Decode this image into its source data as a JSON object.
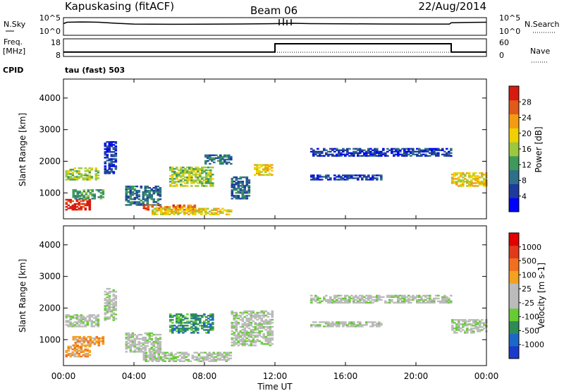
{
  "header": {
    "station": "Kapuskasing (fitACF)",
    "beam": "Beam 06",
    "date": "22/Aug/2014"
  },
  "noise_panel": {
    "left_label": "N.Sky",
    "left_ticks": [
      "10^5",
      "10^0"
    ],
    "right_ticks": [
      "10^5",
      "10^0"
    ],
    "right_label": "N.Search"
  },
  "freq_panel": {
    "left_label_1": "Freq.",
    "left_label_2": "[MHz]",
    "left_ticks": [
      "18",
      "8"
    ],
    "right_ticks": [
      "60",
      "0"
    ],
    "right_label": "Nave"
  },
  "cpid": {
    "label": "CPID",
    "mode": "tau (fast) 503"
  },
  "x_axis": {
    "label": "Time UT",
    "ticks": [
      "00:00",
      "04:00",
      "08:00",
      "12:00",
      "16:00",
      "20:00",
      "00:00"
    ]
  },
  "colors": {
    "power_scale": [
      "#0000ff",
      "#1e3a9c",
      "#2e6f8a",
      "#3e9a5a",
      "#9cc83e",
      "#f0d000",
      "#f39c12",
      "#e25a1a",
      "#d81b10"
    ],
    "velocity_scale": [
      "#1a3acb",
      "#1b68c8",
      "#2e8b57",
      "#66cc33",
      "#bbbbbb",
      "#bbbbbb",
      "#f4a020",
      "#f07020",
      "#e03a1a",
      "#e00000"
    ]
  },
  "chart_data": [
    {
      "type": "line",
      "panel": "noise",
      "x_unit": "hours UT",
      "y_scale": "log",
      "ylim": [
        1,
        100000
      ],
      "series": [
        {
          "x": [
            0,
            0.2,
            1,
            2,
            3,
            4,
            6,
            8,
            10,
            12,
            13,
            14,
            16,
            18,
            20,
            21.9,
            22,
            23,
            24
          ],
          "y": [
            2000,
            5000,
            6000,
            5000,
            2500,
            1500,
            1300,
            1400,
            1600,
            2000,
            2500,
            2000,
            1800,
            1600,
            1500,
            1500,
            3500,
            4500,
            5000
          ]
        }
      ]
    },
    {
      "type": "line",
      "panel": "frequency",
      "x_unit": "hours UT",
      "ylim": [
        8,
        18
      ],
      "series": [
        {
          "x": [
            0,
            12,
            12,
            22,
            22,
            24
          ],
          "y": [
            10.5,
            10.5,
            15.2,
            15.2,
            10.5,
            10.5
          ]
        }
      ]
    },
    {
      "type": "heatmap",
      "panel": "power",
      "x_range_hours": [
        0,
        24
      ],
      "ylabel": "Slant Range [km]",
      "ylim": [
        180,
        4600
      ],
      "yticks": [
        1000,
        2000,
        3000,
        4000
      ],
      "colorbar": {
        "label": "Power [dB]",
        "ticks": [
          4,
          8,
          12,
          16,
          20,
          24,
          28
        ]
      },
      "regions": [
        {
          "t": [
            0.1,
            1.5
          ],
          "r": [
            450,
            780
          ],
          "level": 8
        },
        {
          "t": [
            0.1,
            2.0
          ],
          "r": [
            1400,
            1800
          ],
          "level": 4
        },
        {
          "t": [
            0.5,
            2.2
          ],
          "r": [
            800,
            1100
          ],
          "level": 3
        },
        {
          "t": [
            2.3,
            3.0
          ],
          "r": [
            1600,
            2600
          ],
          "level": 1
        },
        {
          "t": [
            3.5,
            5.5
          ],
          "r": [
            600,
            1200
          ],
          "level": 2
        },
        {
          "t": [
            4.5,
            7.5
          ],
          "r": [
            450,
            600
          ],
          "level": 7
        },
        {
          "t": [
            5.0,
            9.5
          ],
          "r": [
            300,
            500
          ],
          "level": 5
        },
        {
          "t": [
            6.0,
            8.5
          ],
          "r": [
            1200,
            1800
          ],
          "level": 4
        },
        {
          "t": [
            8.0,
            9.5
          ],
          "r": [
            1900,
            2200
          ],
          "level": 2
        },
        {
          "t": [
            9.5,
            10.5
          ],
          "r": [
            800,
            1500
          ],
          "level": 2
        },
        {
          "t": [
            10.8,
            11.8
          ],
          "r": [
            1550,
            1900
          ],
          "level": 5
        },
        {
          "t": [
            14.0,
            22.0
          ],
          "r": [
            2150,
            2400
          ],
          "level": 1
        },
        {
          "t": [
            14.0,
            18.0
          ],
          "r": [
            1400,
            1550
          ],
          "level": 1
        },
        {
          "t": [
            22.0,
            24.0
          ],
          "r": [
            1200,
            1650
          ],
          "level": 5
        }
      ]
    },
    {
      "type": "heatmap",
      "panel": "velocity",
      "x_range_hours": [
        0,
        24
      ],
      "ylabel": "Slant Range [km]",
      "ylim": [
        180,
        4600
      ],
      "yticks": [
        1000,
        2000,
        3000,
        4000
      ],
      "colorbar": {
        "label": "Velocity [m s-1]",
        "ticks": [
          1000,
          500,
          100,
          25,
          -25,
          -100,
          -500,
          -1000
        ]
      },
      "regions": [
        {
          "t": [
            0.1,
            1.5
          ],
          "r": [
            450,
            780
          ],
          "level": 6
        },
        {
          "t": [
            0.1,
            2.0
          ],
          "r": [
            1400,
            1800
          ],
          "level": 4
        },
        {
          "t": [
            0.5,
            2.2
          ],
          "r": [
            800,
            1100
          ],
          "level": 6
        },
        {
          "t": [
            2.3,
            3.0
          ],
          "r": [
            1600,
            2600
          ],
          "level": 4
        },
        {
          "t": [
            3.5,
            5.5
          ],
          "r": [
            600,
            1200
          ],
          "level": 4
        },
        {
          "t": [
            4.5,
            9.5
          ],
          "r": [
            300,
            600
          ],
          "level": 4
        },
        {
          "t": [
            6.0,
            8.5
          ],
          "r": [
            1200,
            1800
          ],
          "level": 2
        },
        {
          "t": [
            9.5,
            11.8
          ],
          "r": [
            800,
            1900
          ],
          "level": 4
        },
        {
          "t": [
            14.0,
            22.0
          ],
          "r": [
            2150,
            2400
          ],
          "level": 4
        },
        {
          "t": [
            14.0,
            18.0
          ],
          "r": [
            1400,
            1550
          ],
          "level": 4
        },
        {
          "t": [
            22.0,
            24.0
          ],
          "r": [
            1200,
            1650
          ],
          "level": 4
        }
      ]
    }
  ]
}
